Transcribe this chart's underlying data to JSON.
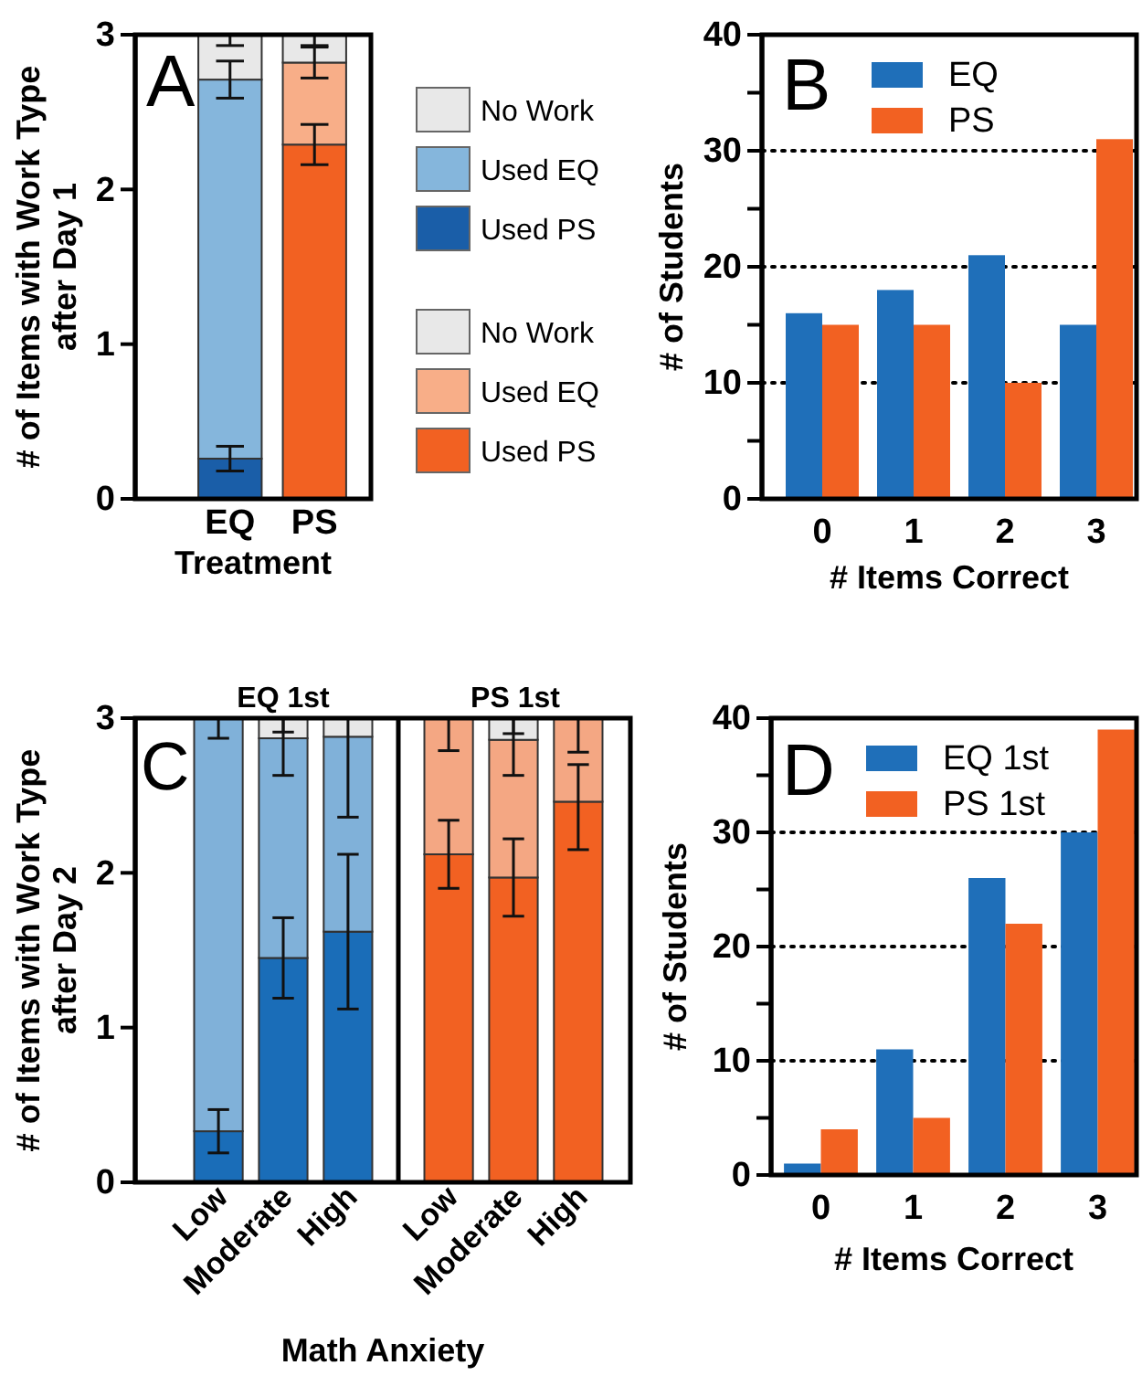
{
  "chart_data": [
    {
      "type": "bar",
      "stacked": true,
      "categories": [
        "EQ",
        "PS"
      ],
      "xlabel": "Treatment",
      "ylabel": "# of Items with Work Type after Day 1",
      "ylim": [
        0,
        3
      ],
      "yticks": [
        0,
        1,
        2,
        3
      ],
      "legend": "right",
      "annotations": [
        "A"
      ],
      "series": [
        {
          "name": "Used PS",
          "color": "#1a5ea8",
          "values": [
            0.26,
            null
          ],
          "errors": [
            0.08,
            null
          ]
        },
        {
          "name": "Used EQ",
          "color": "#85b6dc",
          "values": [
            2.45,
            null
          ],
          "errors": [
            0.12,
            null
          ]
        },
        {
          "name": "No Work",
          "color": "#e8e8e8",
          "values": [
            0.29,
            null
          ],
          "errors": [
            [
              2.93,
              3
            ],
            null
          ]
        },
        {
          "name": "Used PS",
          "color": "#f26122",
          "values": [
            null,
            2.29
          ],
          "errors": [
            null,
            0.13
          ]
        },
        {
          "name": "Used EQ",
          "color": "#f8ae88",
          "values": [
            null,
            0.53
          ],
          "errors": [
            null,
            0.1
          ]
        },
        {
          "name": "No Work",
          "color": "#e8e8e8",
          "values": [
            null,
            0.18
          ],
          "errors": [
            null,
            [
              2.93,
              3
            ]
          ]
        }
      ]
    },
    {
      "type": "bar",
      "categories": [
        "0",
        "1",
        "2",
        "3"
      ],
      "xlabel": "# Items Correct",
      "ylabel": "# of Students",
      "ylim": [
        0,
        40
      ],
      "yticks": [
        0,
        {
          "value": 5,
          "label": null
        },
        10,
        {
          "value": 15,
          "label": null
        },
        20,
        {
          "value": 25,
          "label": null
        },
        30,
        {
          "value": 35,
          "label": null
        },
        40
      ],
      "grid": "y",
      "legend": "top left",
      "annotations": [
        "B"
      ],
      "series": [
        {
          "name": "EQ",
          "color": "#1f6fb9",
          "values": [
            16,
            18,
            21,
            15
          ]
        },
        {
          "name": "PS",
          "color": "#f26122",
          "values": [
            15,
            15,
            10,
            31
          ]
        }
      ]
    },
    {
      "type": "bar",
      "stacked": true,
      "categories": [
        "Low",
        "Moderate",
        "High",
        "Low",
        "Moderate",
        "High"
      ],
      "xlabel": "Math Anxiety",
      "ylabel": "# of Items with Work Type after Day 2",
      "ylim": [
        0,
        3
      ],
      "yticks": [
        0,
        1,
        2,
        3
      ],
      "annotations": [
        "C",
        "EQ 1st",
        "PS 1st"
      ],
      "series": [
        {
          "color": "#1a6db8",
          "values": [
            0.33,
            1.45,
            1.62,
            null,
            null,
            null
          ],
          "errors": [
            0.14,
            0.26,
            0.5,
            null,
            null,
            null
          ]
        },
        {
          "color": "#80b1d9",
          "values": [
            2.67,
            1.42,
            1.26,
            null,
            null,
            null
          ],
          "errors": [
            [
              2.87,
              3
            ],
            [
              2.63,
              3
            ],
            [
              2.36,
              3
            ],
            null,
            null,
            null
          ]
        },
        {
          "color": "#e8e8e8",
          "values": [
            null,
            0.13,
            0.12,
            null,
            null,
            null
          ],
          "errors": [
            null,
            [
              2.91,
              3
            ],
            null,
            null,
            null,
            null
          ]
        },
        {
          "color": "#f26122",
          "values": [
            null,
            null,
            null,
            2.12,
            1.97,
            2.46
          ],
          "errors": [
            null,
            null,
            null,
            0.22,
            0.25,
            [
              2.15,
              2.7
            ]
          ]
        },
        {
          "color": "#f4a783",
          "values": [
            null,
            null,
            null,
            0.88,
            0.89,
            0.54
          ],
          "errors": [
            null,
            null,
            null,
            [
              2.79,
              3
            ],
            [
              2.63,
              3
            ],
            [
              2.78,
              3
            ]
          ]
        },
        {
          "color": "#e8e8e8",
          "values": [
            null,
            null,
            null,
            null,
            0.14,
            null
          ],
          "errors": [
            null,
            null,
            null,
            null,
            [
              2.9,
              3
            ],
            null
          ]
        }
      ]
    },
    {
      "type": "bar",
      "categories": [
        "0",
        "1",
        "2",
        "3"
      ],
      "xlabel": "# Items Correct",
      "ylabel": "# of Students",
      "ylim": [
        0,
        40
      ],
      "yticks": [
        0,
        {
          "value": 5,
          "label": null
        },
        10,
        {
          "value": 15,
          "label": null
        },
        20,
        {
          "value": 25,
          "label": null
        },
        30,
        {
          "value": 35,
          "label": null
        },
        40
      ],
      "grid": "y",
      "legend": "top left",
      "annotations": [
        "D"
      ],
      "series": [
        {
          "name": "EQ 1st",
          "color": "#1f6fb9",
          "values": [
            1,
            11,
            26,
            30
          ]
        },
        {
          "name": "PS 1st",
          "color": "#f26122",
          "values": [
            4,
            5,
            22,
            39
          ]
        }
      ]
    }
  ]
}
